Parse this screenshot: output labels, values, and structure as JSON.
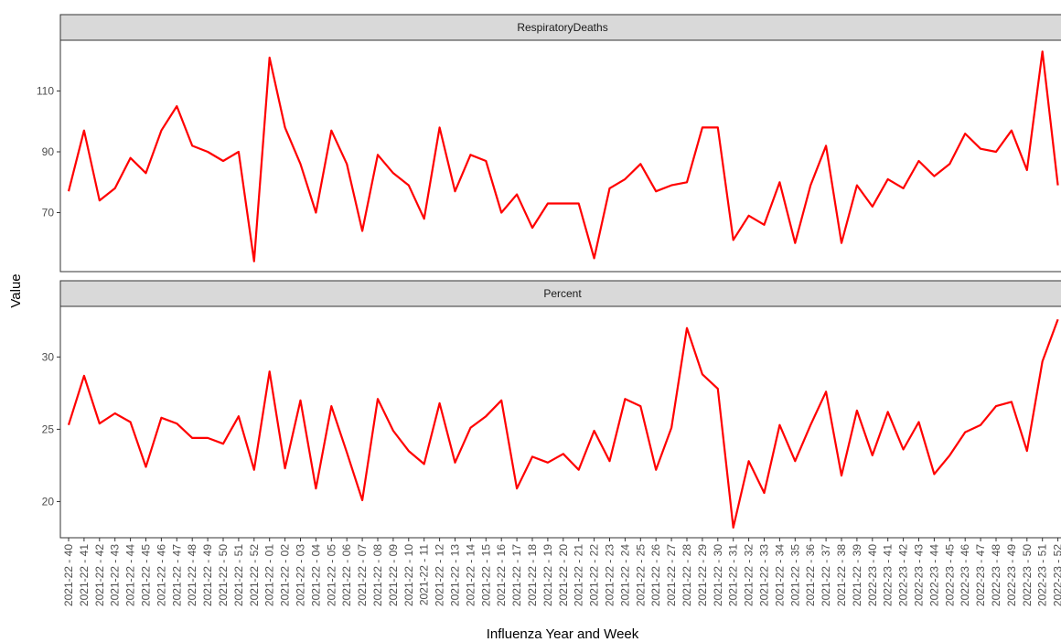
{
  "chart_data": {
    "type": "line",
    "facet": true,
    "x_label": "Influenza Year and Week",
    "y_label": "Value",
    "categories": [
      "2021-22 - 40",
      "2021-22 - 41",
      "2021-22 - 42",
      "2021-22 - 43",
      "2021-22 - 44",
      "2021-22 - 45",
      "2021-22 - 46",
      "2021-22 - 47",
      "2021-22 - 48",
      "2021-22 - 49",
      "2021-22 - 50",
      "2021-22 - 51",
      "2021-22 - 52",
      "2021-22 - 01",
      "2021-22 - 02",
      "2021-22 - 03",
      "2021-22 - 04",
      "2021-22 - 05",
      "2021-22 - 06",
      "2021-22 - 07",
      "2021-22 - 08",
      "2021-22 - 09",
      "2021-22 - 10",
      "2021-22 - 11",
      "2021-22 - 12",
      "2021-22 - 13",
      "2021-22 - 14",
      "2021-22 - 15",
      "2021-22 - 16",
      "2021-22 - 17",
      "2021-22 - 18",
      "2021-22 - 19",
      "2021-22 - 20",
      "2021-22 - 21",
      "2021-22 - 22",
      "2021-22 - 23",
      "2021-22 - 24",
      "2021-22 - 25",
      "2021-22 - 26",
      "2021-22 - 27",
      "2021-22 - 28",
      "2021-22 - 29",
      "2021-22 - 30",
      "2021-22 - 31",
      "2021-22 - 32",
      "2021-22 - 33",
      "2021-22 - 34",
      "2021-22 - 35",
      "2021-22 - 36",
      "2021-22 - 37",
      "2021-22 - 38",
      "2021-22 - 39",
      "2022-23 - 40",
      "2022-23 - 41",
      "2022-23 - 42",
      "2022-23 - 43",
      "2022-23 - 44",
      "2022-23 - 45",
      "2022-23 - 46",
      "2022-23 - 47",
      "2022-23 - 48",
      "2022-23 - 49",
      "2022-23 - 50",
      "2022-23 - 51",
      "2022-23 - 52"
    ],
    "series": [
      {
        "name": "RespiratoryDeaths",
        "color": "#ff0000",
        "ylim": [
          50.6,
          126.7
        ],
        "yticks": [
          70,
          90,
          110
        ],
        "values": [
          77,
          97,
          74,
          78,
          88,
          83,
          97,
          105,
          92,
          90,
          87,
          90,
          54,
          121,
          98,
          86,
          70,
          97,
          86,
          64,
          89,
          83,
          79,
          68,
          98,
          77,
          89,
          87,
          70,
          76,
          65,
          73,
          73,
          73,
          55,
          78,
          81,
          86,
          77,
          79,
          80,
          98,
          98,
          61,
          69,
          66,
          80,
          60,
          79,
          92,
          60,
          79,
          72,
          81,
          78,
          87,
          82,
          86,
          96,
          91,
          90,
          97,
          84,
          123,
          79
        ]
      },
      {
        "name": "Percent",
        "color": "#ff0000",
        "ylim": [
          17.5,
          33.5
        ],
        "yticks": [
          20,
          25,
          30
        ],
        "values": [
          25.3,
          28.7,
          25.4,
          26.1,
          25.5,
          22.4,
          25.8,
          25.4,
          24.4,
          24.4,
          24.0,
          25.9,
          22.2,
          29.0,
          22.3,
          27.0,
          20.9,
          26.6,
          23.4,
          20.1,
          27.1,
          24.9,
          23.5,
          22.6,
          26.8,
          22.7,
          25.1,
          25.9,
          27.0,
          20.9,
          23.1,
          22.7,
          23.3,
          22.2,
          24.9,
          22.8,
          27.1,
          26.6,
          22.2,
          25.1,
          32.0,
          28.8,
          27.8,
          18.2,
          22.8,
          20.6,
          25.3,
          22.8,
          25.3,
          27.6,
          21.8,
          26.3,
          23.2,
          26.2,
          23.6,
          25.5,
          21.9,
          23.2,
          24.8,
          25.3,
          26.6,
          26.9,
          23.5,
          29.7,
          32.6
        ]
      }
    ]
  }
}
